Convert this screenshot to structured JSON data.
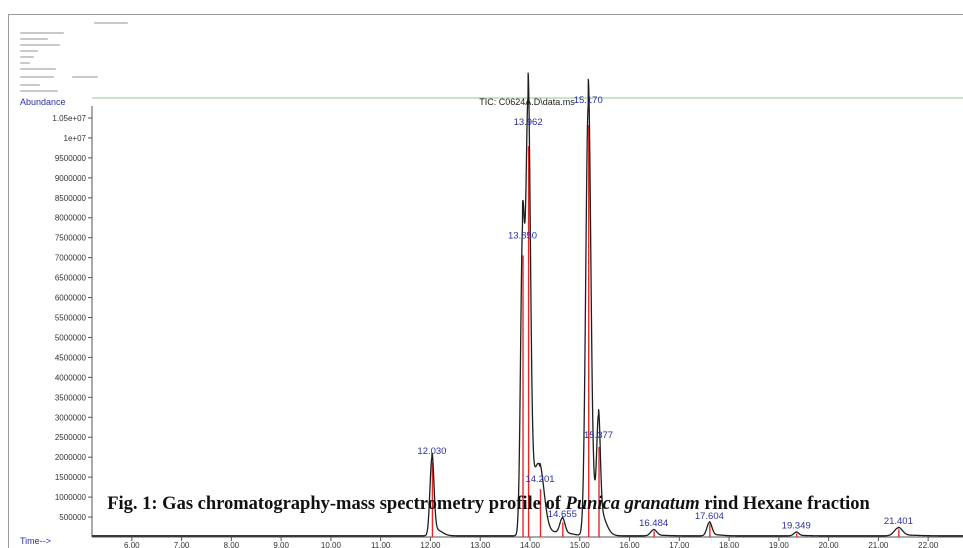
{
  "caption": {
    "prefix": "Fig. 1: Gas chromatography-mass spectrometry profile of ",
    "species": "Punica granatum",
    "suffix": " rind Hexane fraction"
  },
  "chart_data": {
    "type": "line",
    "title": "TIC: C0624A.D\\data.ms",
    "ylabel": "Abundance",
    "xlabel": "Time-->",
    "xlim": [
      5.2,
      22.7
    ],
    "ylim": [
      0,
      10800000
    ],
    "x_ticks": [
      6.0,
      7.0,
      8.0,
      9.0,
      10.0,
      11.0,
      12.0,
      13.0,
      14.0,
      15.0,
      16.0,
      17.0,
      18.0,
      19.0,
      20.0,
      21.0,
      22.0
    ],
    "x_tick_labels": [
      "6.00",
      "7.00",
      "8.00",
      "9.00",
      "10.00",
      "11.00",
      "12.00",
      "13.00",
      "14.00",
      "15.00",
      "16.00",
      "17.00",
      "18.00",
      "19.00",
      "20.00",
      "21.00",
      "22.00"
    ],
    "y_ticks": [
      500000,
      1000000,
      1500000,
      2000000,
      2500000,
      3000000,
      3500000,
      4000000,
      4500000,
      5000000,
      5500000,
      6000000,
      6500000,
      7000000,
      7500000,
      8000000,
      8500000,
      9000000,
      9500000,
      10000000,
      10500000
    ],
    "y_tick_labels": [
      "500000",
      "1000000",
      "1500000",
      "2000000",
      "2500000",
      "3000000",
      "3500000",
      "4000000",
      "4500000",
      "5000000",
      "5500000",
      "6000000",
      "6500000",
      "7000000",
      "7500000",
      "8000000",
      "8500000",
      "9000000",
      "9500000",
      "1e+07",
      "1.05e+07"
    ],
    "peaks": [
      {
        "rt": 12.03,
        "label": "12.030",
        "abundance": 1950000
      },
      {
        "rt": 13.85,
        "label": "13.850",
        "abundance": 7350000
      },
      {
        "rt": 13.962,
        "label": "13.962",
        "abundance": 10200000
      },
      {
        "rt": 14.201,
        "label": "14.201",
        "abundance": 1250000
      },
      {
        "rt": 14.65,
        "label": "14.655",
        "abundance": 380000
      },
      {
        "rt": 15.17,
        "label": "15.170",
        "abundance": 10750000
      },
      {
        "rt": 15.377,
        "label": "15.377",
        "abundance": 2350000
      },
      {
        "rt": 16.484,
        "label": "16.484",
        "abundance": 150000
      },
      {
        "rt": 17.604,
        "label": "17.604",
        "abundance": 330000
      },
      {
        "rt": 19.349,
        "label": "19.349",
        "abundance": 90000
      },
      {
        "rt": 21.401,
        "label": "21.401",
        "abundance": 200000
      }
    ],
    "peak_widths": [
      0.04,
      0.04,
      0.045,
      0.09,
      0.05,
      0.05,
      0.035,
      0.06,
      0.05,
      0.05,
      0.08
    ],
    "baseline": 30000,
    "series_colors": {
      "tic": "#1e1e1e",
      "overlay": "#e02a2a",
      "labels": "#2a2fa8",
      "frame": "#8fce8f"
    },
    "legend": "none",
    "grid": false
  }
}
